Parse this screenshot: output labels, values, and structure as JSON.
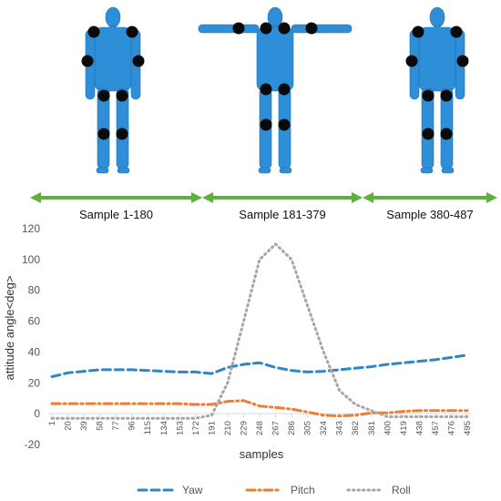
{
  "segments": [
    {
      "label": "Sample 1-180",
      "pose": "arms-down"
    },
    {
      "label": "Sample 181-379",
      "pose": "arms-out"
    },
    {
      "label": "Sample 380-487",
      "pose": "arms-down"
    }
  ],
  "colors": {
    "figure": "#2e8fd8",
    "joint": "#0a0a0a",
    "arrow": "#5fb03f",
    "yaw": "#2e86c8",
    "pitch": "#ee7d31",
    "roll": "#a6a6a6",
    "gridline": "#d9d9d9"
  },
  "chart_data": {
    "type": "line",
    "xlabel": "samples",
    "ylabel": "attitude angle<deg>",
    "ylim": [
      -20,
      120
    ],
    "yticks": [
      -20,
      0,
      20,
      40,
      60,
      80,
      100,
      120
    ],
    "grid": false,
    "legend": "bottom",
    "x": [
      1,
      20,
      39,
      58,
      77,
      96,
      115,
      134,
      153,
      172,
      191,
      210,
      229,
      248,
      267,
      286,
      305,
      324,
      343,
      362,
      381,
      400,
      419,
      438,
      457,
      476,
      495
    ],
    "series": [
      {
        "name": "Yaw",
        "style": "dash",
        "values": [
          24,
          26.5,
          27.5,
          28.5,
          28.5,
          28.5,
          28,
          27.5,
          27,
          27,
          26,
          30,
          32,
          33,
          30,
          28,
          27,
          27.5,
          28.5,
          29.5,
          30.5,
          32,
          33,
          34,
          35,
          36.5,
          38
        ]
      },
      {
        "name": "Pitch",
        "style": "dashdot",
        "values": [
          6.5,
          6.5,
          6.5,
          6.5,
          6.5,
          6.5,
          6.5,
          6.5,
          6.5,
          6,
          6,
          8,
          8.5,
          5,
          4,
          3,
          1,
          -1,
          -1.5,
          -1,
          0.5,
          0.5,
          1.5,
          2,
          2,
          2,
          2
        ]
      },
      {
        "name": "Roll",
        "style": "dot",
        "values": [
          -3,
          -3,
          -3,
          -3,
          -3,
          -3,
          -3,
          -3,
          -3,
          -3,
          -1,
          20,
          60,
          100,
          110,
          100,
          70,
          40,
          15,
          6,
          2,
          -2,
          -2,
          -2,
          -2,
          -2,
          -2
        ]
      }
    ]
  }
}
